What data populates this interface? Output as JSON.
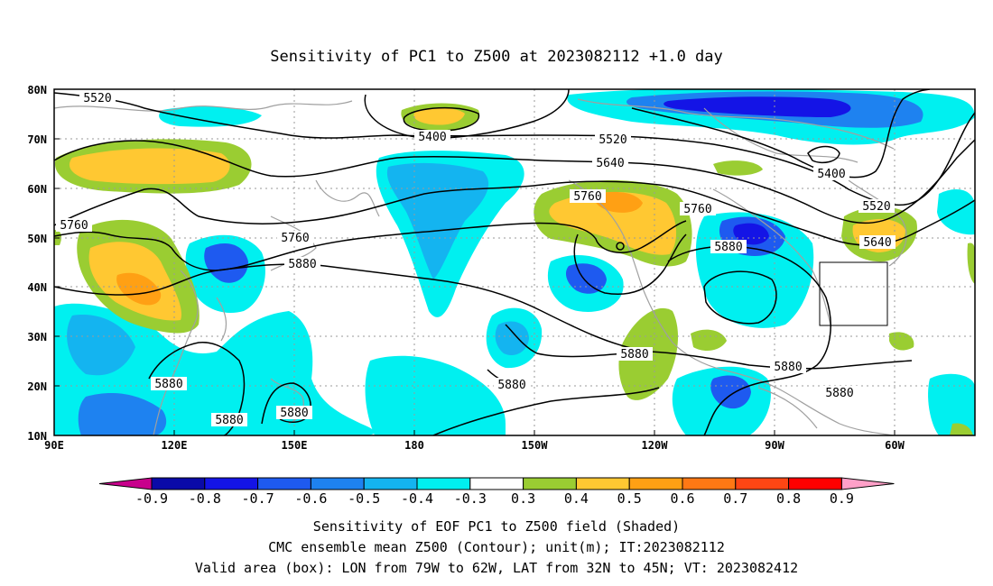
{
  "title": "Sensitivity of PC1 to Z500 at 2023082112 +1.0 day",
  "map": {
    "lon_ticks": [
      "90E",
      "120E",
      "150E",
      "180",
      "150W",
      "120W",
      "90W",
      "60W"
    ],
    "lat_ticks": [
      "80N",
      "70N",
      "60N",
      "50N",
      "40N",
      "30N",
      "20N",
      "10N"
    ],
    "valid_box": {
      "lon_from": "79W",
      "lon_to": "62W",
      "lat_from": "32N",
      "lat_to": "45N"
    },
    "contour_labels": [
      "5520",
      "5400",
      "5520",
      "5640",
      "5760",
      "5760",
      "5760",
      "5760",
      "5880",
      "5880",
      "5400",
      "5520",
      "5640",
      "5880",
      "5880",
      "5880",
      "5880",
      "5880",
      "5880",
      "5880"
    ]
  },
  "colorbar": {
    "labels": [
      "-0.9",
      "-0.8",
      "-0.7",
      "-0.6",
      "-0.5",
      "-0.4",
      "-0.3",
      "0.3",
      "0.4",
      "0.5",
      "0.6",
      "0.7",
      "0.8",
      "0.9"
    ],
    "colors": [
      "#0a0aa8",
      "#1414e6",
      "#1e5af0",
      "#1e82f0",
      "#14b4f0",
      "#00f0f0",
      "#ffffff",
      "#9acd32",
      "#ffc832",
      "#ffa014",
      "#ff7814",
      "#ff4614",
      "#ff0000"
    ],
    "low_end_color": "#c8008c",
    "high_end_color": "#ffa0c8"
  },
  "footer": {
    "line1": "Sensitivity of EOF PC1 to Z500 field (Shaded)",
    "line2": "CMC ensemble mean Z500 (Contour); unit(m); IT:2023082112",
    "line3": "Valid area (box): LON from 79W to 62W, LAT from 32N to 45N; VT: 2023082412"
  }
}
